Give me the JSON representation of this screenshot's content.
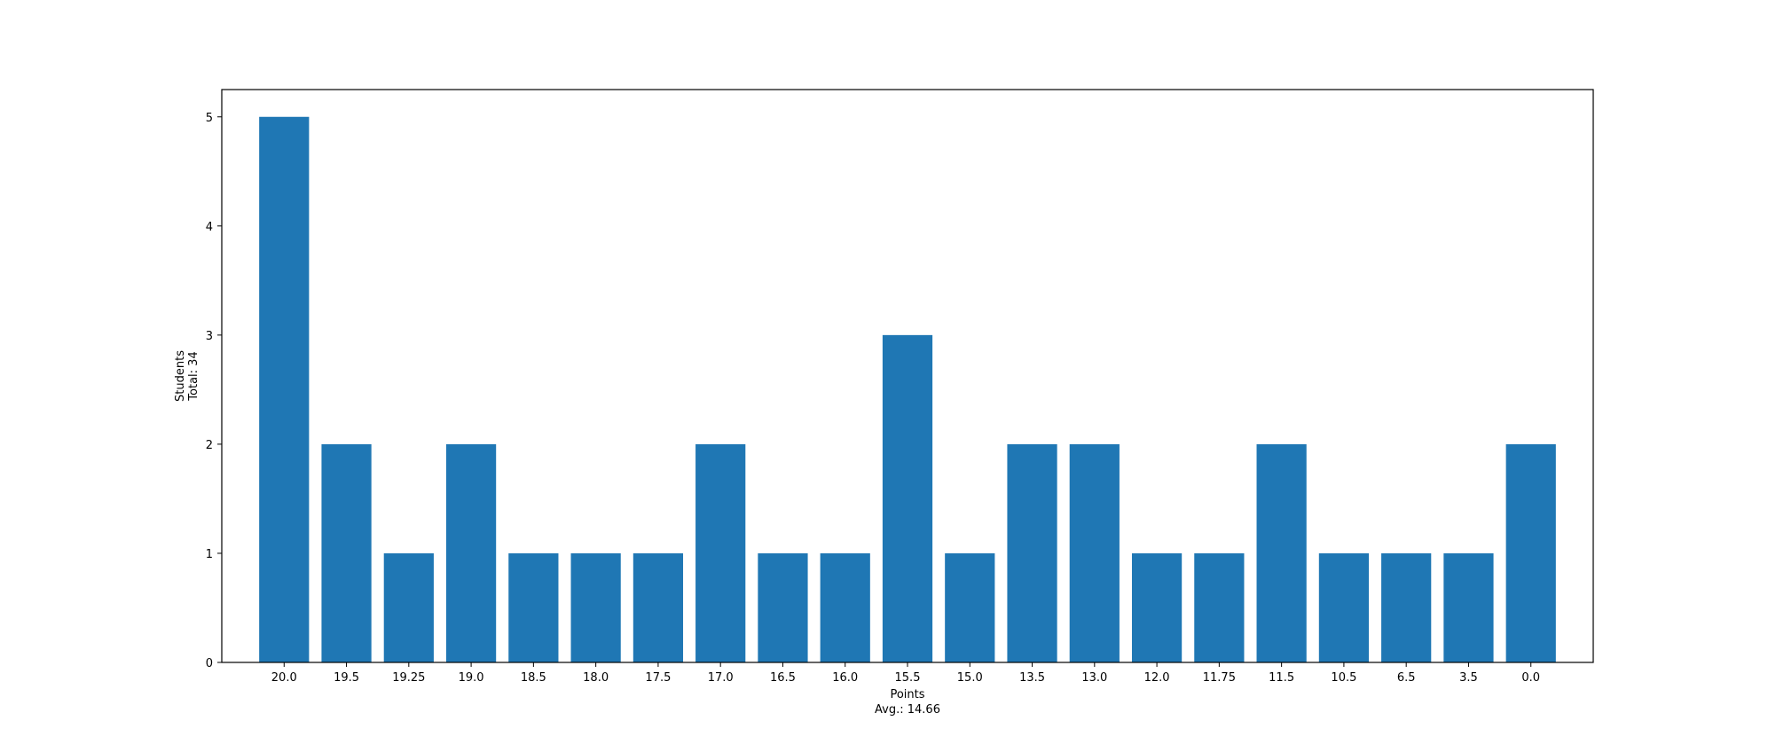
{
  "chart_data": {
    "type": "bar",
    "categories": [
      "20.0",
      "19.5",
      "19.25",
      "19.0",
      "18.5",
      "18.0",
      "17.5",
      "17.0",
      "16.5",
      "16.0",
      "15.5",
      "15.0",
      "13.5",
      "13.0",
      "12.0",
      "11.75",
      "11.5",
      "10.5",
      "6.5",
      "3.5",
      "0.0"
    ],
    "values": [
      5,
      2,
      1,
      2,
      1,
      1,
      1,
      2,
      1,
      1,
      3,
      1,
      2,
      2,
      1,
      1,
      2,
      1,
      1,
      1,
      2
    ],
    "xlabel": "Points",
    "xlabel_sub": "Avg.: 14.66",
    "ylabel": "Students",
    "ylabel_sub": "Total: 34",
    "ylim": [
      0,
      5.25
    ],
    "yticks": [
      0,
      1,
      2,
      3,
      4,
      5
    ],
    "grid": false,
    "bar_color": "#1f77b4"
  }
}
